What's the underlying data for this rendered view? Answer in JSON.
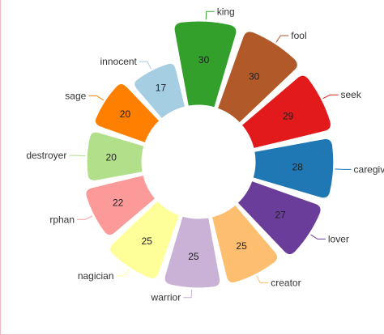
{
  "chart_data": {
    "type": "pie",
    "variant": "nightingale-donut",
    "slices": [
      {
        "category": "king",
        "value": 30,
        "color": "#33a02c"
      },
      {
        "category": "fool",
        "value": 30,
        "color": "#b15928"
      },
      {
        "category": "seek",
        "value": 29,
        "color": "#e31a1c"
      },
      {
        "category": "caregiver",
        "value": 28,
        "color": "#1f78b4"
      },
      {
        "category": "lover",
        "value": 27,
        "color": "#6a3d9a"
      },
      {
        "category": "creator",
        "value": 25,
        "color": "#fdbf6f"
      },
      {
        "category": "warrior",
        "value": 25,
        "color": "#cab2d6"
      },
      {
        "category": "nagician",
        "value": 25,
        "color": "#ffff99"
      },
      {
        "category": "rphan",
        "value": 22,
        "color": "#fb9a99"
      },
      {
        "category": "destroyer",
        "value": 20,
        "color": "#b2df8a"
      },
      {
        "category": "sage",
        "value": 20,
        "color": "#ff7f00"
      },
      {
        "category": "innocent",
        "value": 17,
        "color": "#a6cee3"
      }
    ],
    "legend": "none",
    "grid": false
  }
}
